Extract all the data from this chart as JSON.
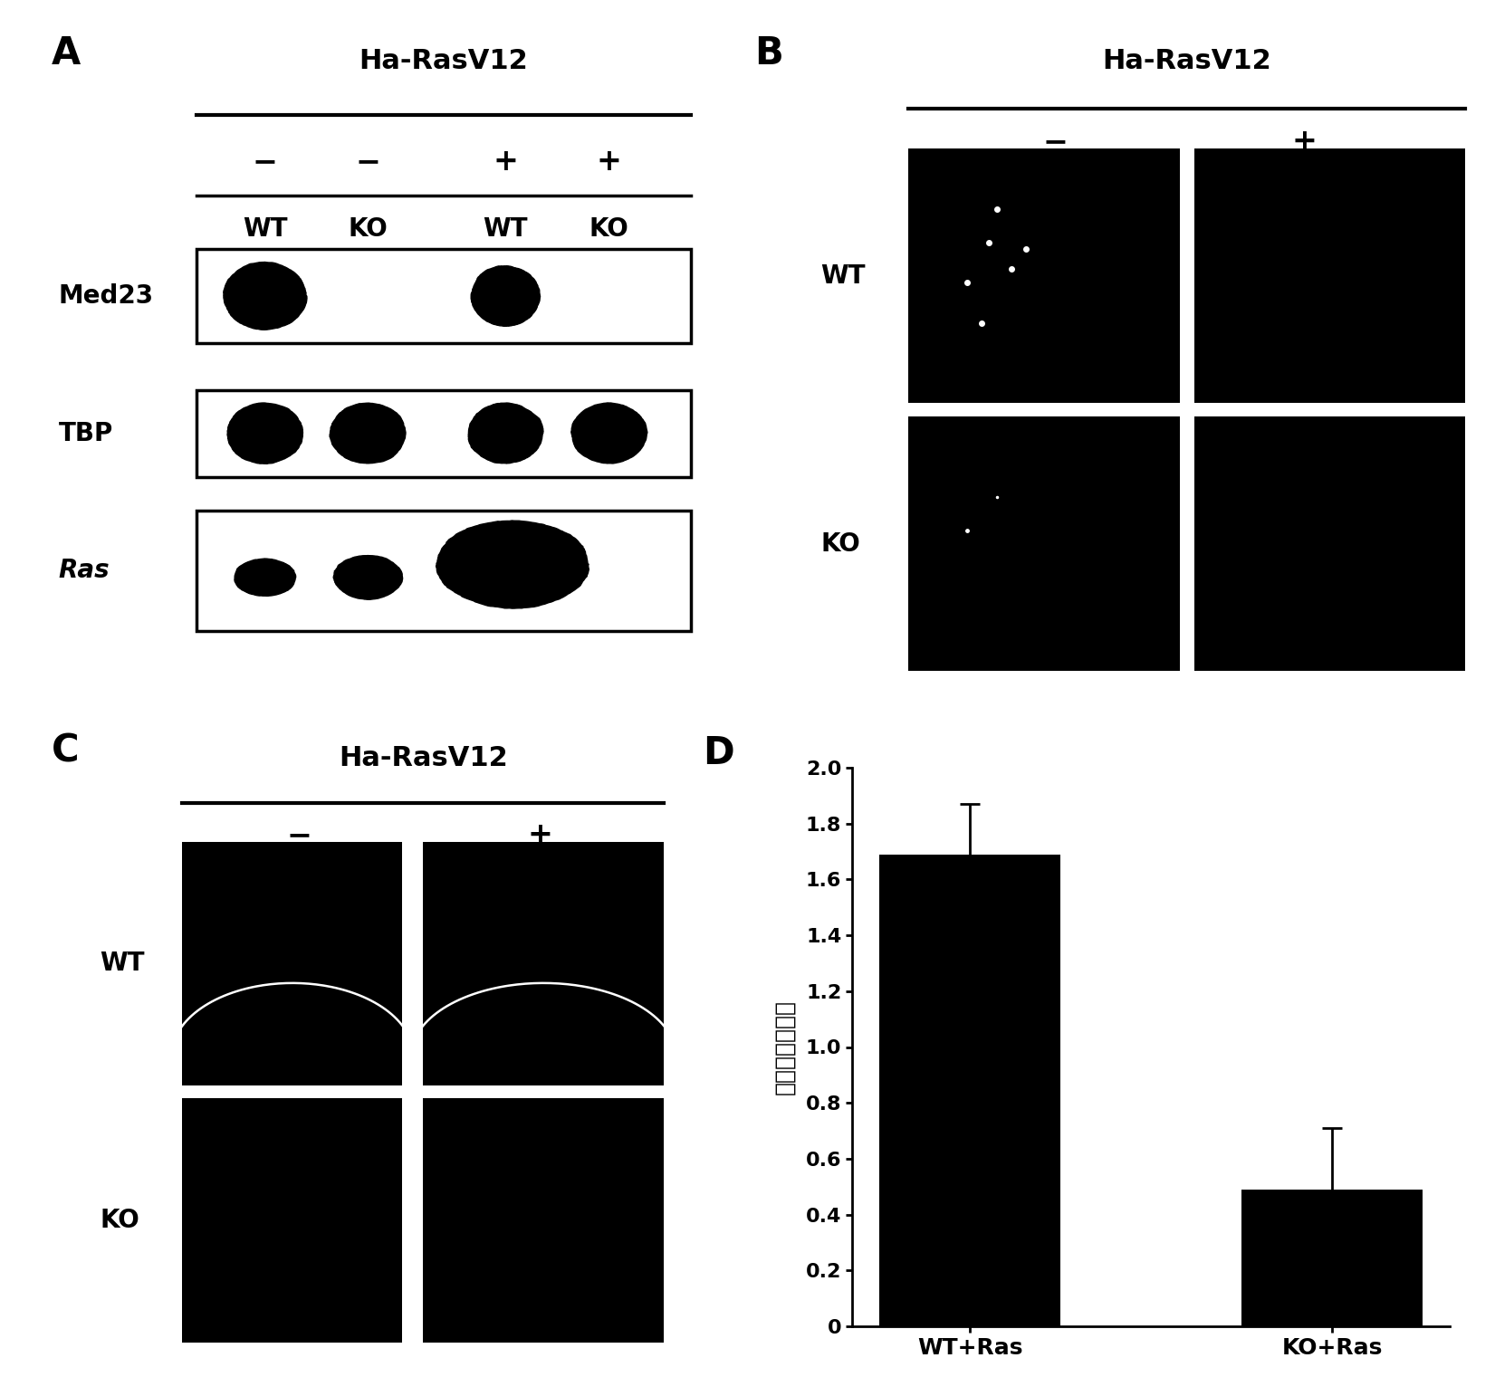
{
  "panel_A": {
    "label": "A",
    "title": "Ha-RasV12",
    "signs": [
      "−",
      "−",
      "+",
      "+"
    ],
    "genotypes": [
      "WT",
      "KO",
      "WT",
      "KO"
    ],
    "rows": [
      "Med23",
      "TBP",
      "Ras"
    ]
  },
  "panel_B": {
    "label": "B",
    "title": "Ha-RasV12",
    "col_signs": [
      "−",
      "+"
    ],
    "row_labels": [
      "WT",
      "KO"
    ]
  },
  "panel_C": {
    "label": "C",
    "title": "Ha-RasV12",
    "col_signs": [
      "−",
      "+"
    ],
    "row_labels": [
      "WT",
      "KO"
    ]
  },
  "panel_D": {
    "label": "D",
    "ylabel_line1": "肿瘤质量",
    "ylabel_line2": "（克）",
    "categories": [
      "WT+Ras",
      "KO+Ras"
    ],
    "values": [
      1.69,
      0.49
    ],
    "errors_upper": [
      0.18,
      0.22
    ],
    "errors_lower": [
      0.1,
      0.1
    ],
    "bar_color": "#000000",
    "ylim": [
      0,
      2.0
    ],
    "yticks": [
      0,
      0.2,
      0.4,
      0.6,
      0.8,
      1.0,
      1.2,
      1.4,
      1.6,
      1.8,
      2.0
    ]
  },
  "background_color": "#ffffff"
}
